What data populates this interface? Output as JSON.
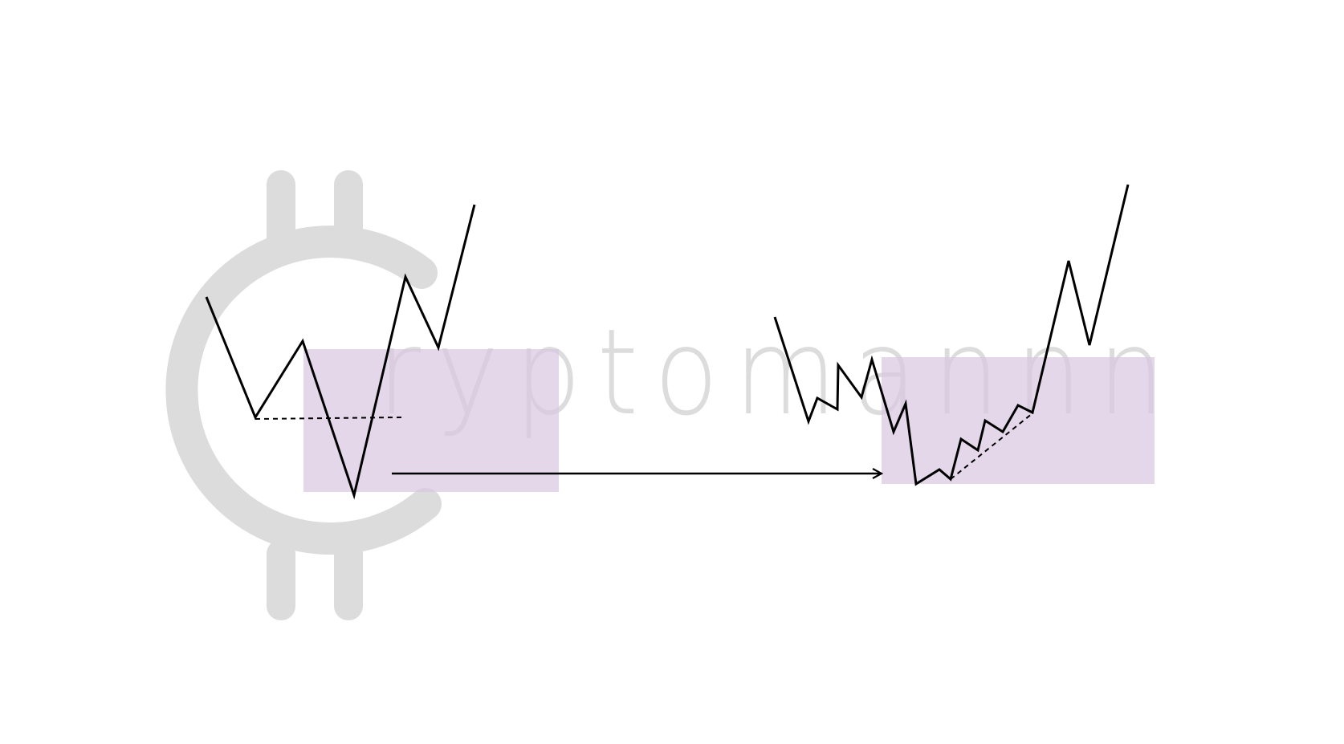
{
  "watermark": {
    "logo_glyph": "C",
    "text": "ryptomannn",
    "color": "#dcdcdc"
  },
  "colors": {
    "zone_fill": "#e6d8ea",
    "line": "#000000",
    "background": "#ffffff"
  },
  "diagram": {
    "left_pattern": "sharp-v-sweep-of-low",
    "right_pattern": "rounded-accumulation-with-rising-lows"
  }
}
